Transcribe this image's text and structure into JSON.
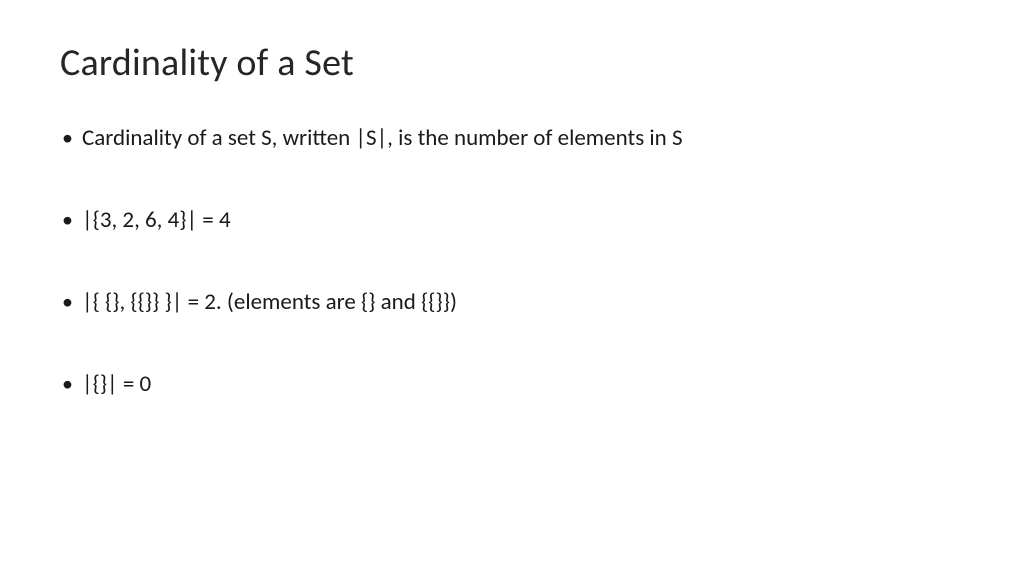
{
  "slide": {
    "title": "Cardinality of a Set",
    "title_fontsize": 38,
    "title_color": "#262626",
    "body_fontsize": 23,
    "body_color": "#1a1a1a",
    "background_color": "#ffffff",
    "bullets": [
      "Cardinality of a set S, written |S|,  is the number of elements in S",
      "|{3, 2, 6, 4}| = 4",
      "|{ {}, {{}} }| = 2. (elements are {} and {{}})",
      "|{}| = 0"
    ]
  }
}
